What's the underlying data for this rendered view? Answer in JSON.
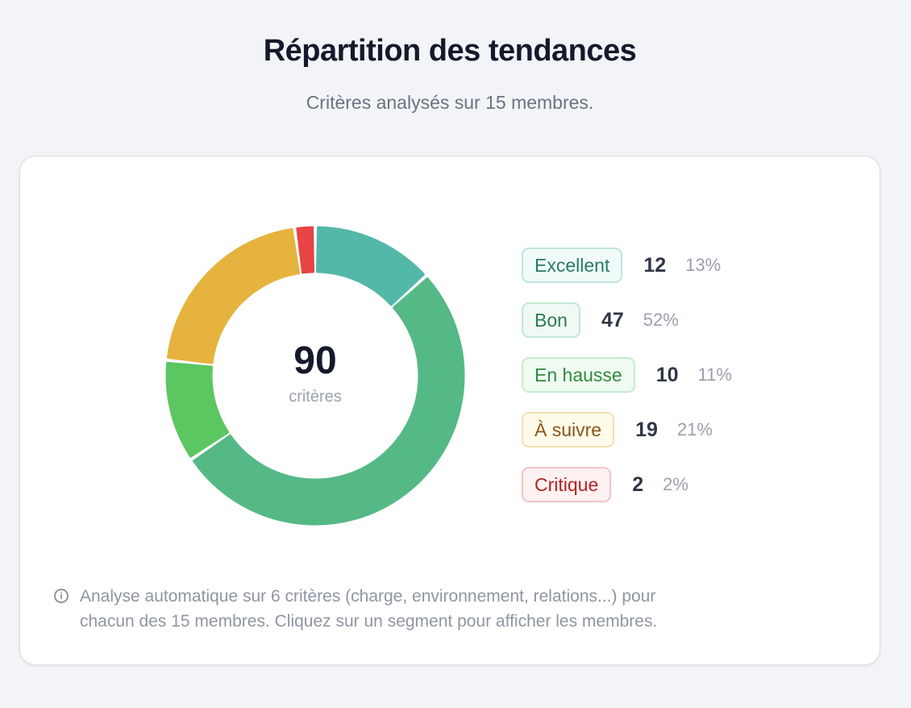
{
  "header": {
    "title": "Répartition des tendances",
    "subtitle": "Critères analysés sur 15 membres."
  },
  "chart_data": {
    "type": "pie",
    "variant": "donut",
    "total": 90,
    "center_label": "critères",
    "categories": [
      "Excellent",
      "Bon",
      "En hausse",
      "À suivre",
      "Critique"
    ],
    "values": [
      12,
      47,
      10,
      19,
      2
    ],
    "percents": [
      "13%",
      "52%",
      "11%",
      "21%",
      "2%"
    ],
    "colors": [
      "#54b8a8",
      "#55b986",
      "#5cc660",
      "#e6b33e",
      "#e84444"
    ],
    "legend_placement": "right"
  },
  "legend_styles": [
    {
      "bg": "#f0fbf9",
      "border": "#bfe6de",
      "text": "#2a7868"
    },
    {
      "bg": "#effaf4",
      "border": "#c2e8d3",
      "text": "#2d7a55"
    },
    {
      "bg": "#f0fbf2",
      "border": "#c5ebcc",
      "text": "#2f8a3e"
    },
    {
      "bg": "#fffbea",
      "border": "#f2dfae",
      "text": "#8a5517"
    },
    {
      "bg": "#fdf1f1",
      "border": "#f1c5c5",
      "text": "#b52222"
    }
  ],
  "note": {
    "icon": "info-icon",
    "text": "Analyse automatique sur 6 critères (charge, environnement, relations...) pour",
    "text2": "chacun des 15 membres. Cliquez sur un segment pour afficher les membres."
  }
}
